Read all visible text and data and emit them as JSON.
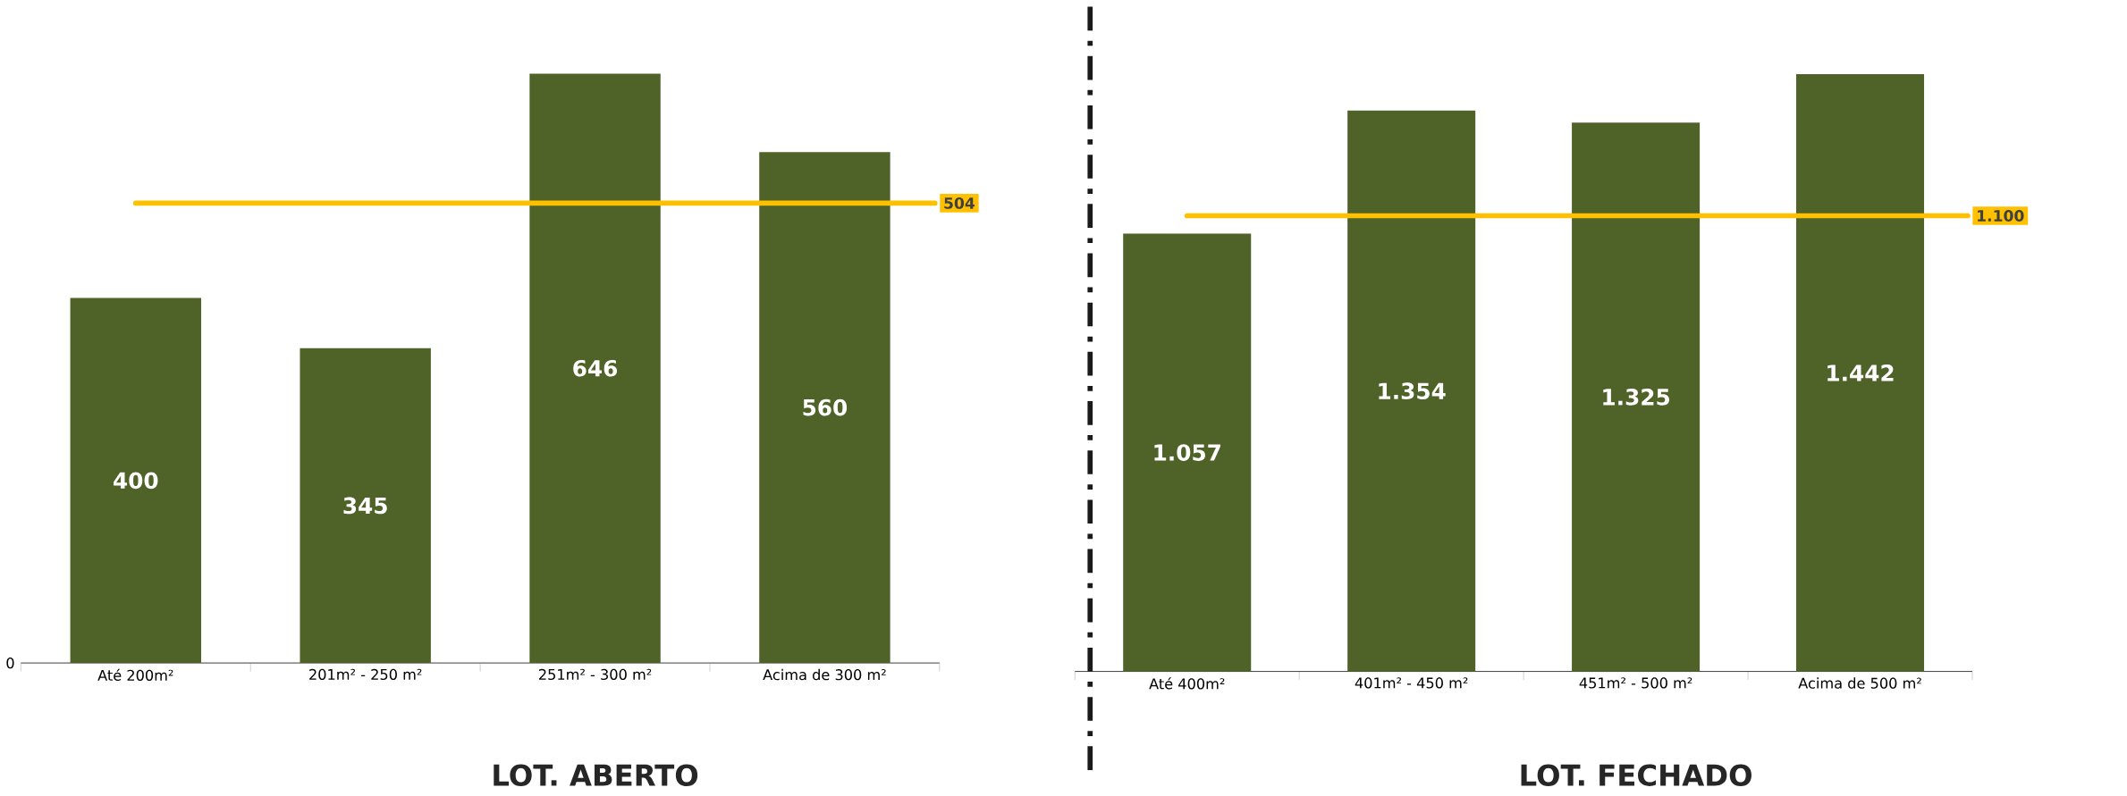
{
  "chart_data": [
    {
      "type": "bar",
      "title": "LOT. ABERTO",
      "categories": [
        "Até 200m²",
        "201m² - 250 m²",
        "251m² - 300 m²",
        "Acima de 300 m²"
      ],
      "values": [
        400,
        345,
        646,
        560
      ],
      "value_labels": [
        "400",
        "345",
        "646",
        "560"
      ],
      "color": "#4f6228",
      "annotations": [
        "0"
      ],
      "ref_lines": [
        {
          "axis": "y",
          "value": 504,
          "label": "504",
          "color": "#ffc000"
        }
      ]
    },
    {
      "type": "bar",
      "title": "LOT. FECHADO",
      "categories": [
        "Até 400m²",
        "401m² - 450 m²",
        "451m² - 500 m²",
        "Acima de 500 m²"
      ],
      "values": [
        1057,
        1354,
        1325,
        1442
      ],
      "value_labels": [
        "1.057",
        "1.354",
        "1.325",
        "1.442"
      ],
      "color": "#4f6228",
      "tick_labels": "x",
      "ref_lines": [
        {
          "axis": "y",
          "value": 1100,
          "label": "1.100",
          "color": "#ffc000"
        }
      ]
    }
  ]
}
